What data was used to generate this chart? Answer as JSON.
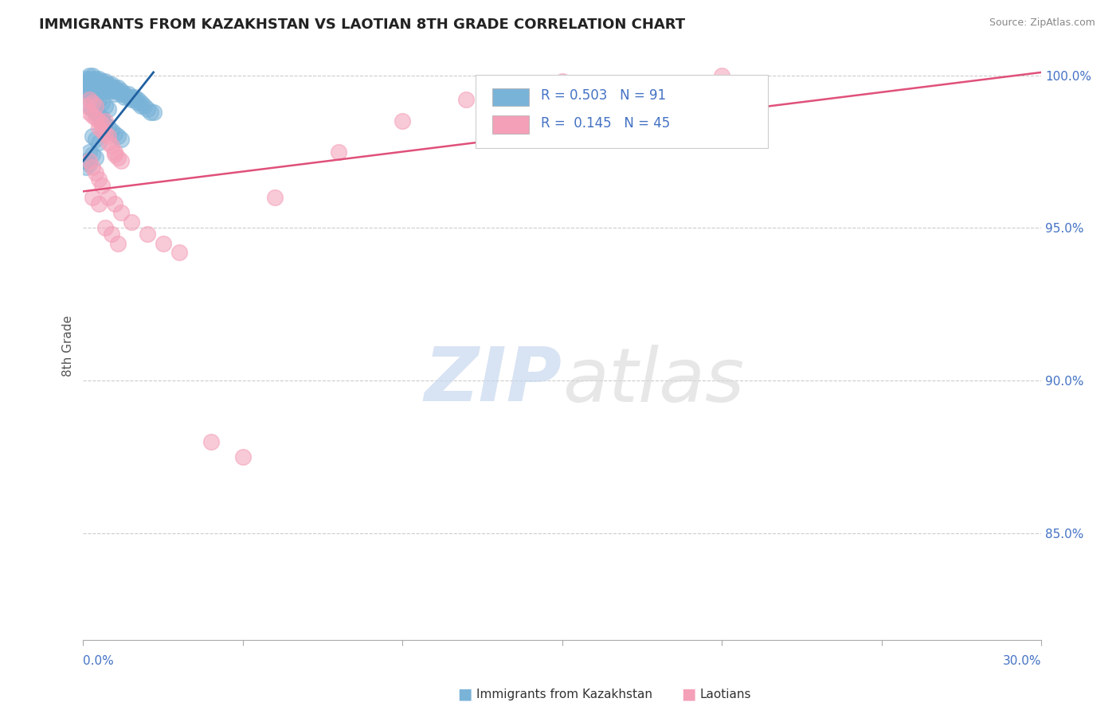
{
  "title": "IMMIGRANTS FROM KAZAKHSTAN VS LAOTIAN 8TH GRADE CORRELATION CHART",
  "source": "Source: ZipAtlas.com",
  "ylabel": "8th Grade",
  "xlim": [
    0.0,
    0.3
  ],
  "ylim": [
    0.815,
    1.008
  ],
  "yticks": [
    0.85,
    0.9,
    0.95,
    1.0
  ],
  "ytick_labels": [
    "85.0%",
    "90.0%",
    "95.0%",
    "100.0%"
  ],
  "blue_color": "#7ab3d8",
  "pink_color": "#f4a0b8",
  "blue_line_color": "#2060a0",
  "pink_line_color": "#e0507a",
  "blue_line_x": [
    0.0,
    0.022
  ],
  "blue_line_y": [
    0.972,
    1.001
  ],
  "pink_line_x": [
    0.0,
    0.3
  ],
  "pink_line_y": [
    0.962,
    1.001
  ],
  "blue_scatter_x": [
    0.001,
    0.001,
    0.001,
    0.001,
    0.001,
    0.002,
    0.002,
    0.002,
    0.002,
    0.002,
    0.002,
    0.002,
    0.003,
    0.003,
    0.003,
    0.003,
    0.003,
    0.003,
    0.004,
    0.004,
    0.004,
    0.004,
    0.004,
    0.005,
    0.005,
    0.005,
    0.005,
    0.006,
    0.006,
    0.006,
    0.006,
    0.007,
    0.007,
    0.007,
    0.007,
    0.008,
    0.008,
    0.008,
    0.009,
    0.009,
    0.009,
    0.01,
    0.01,
    0.01,
    0.011,
    0.011,
    0.012,
    0.012,
    0.013,
    0.013,
    0.014,
    0.014,
    0.015,
    0.015,
    0.016,
    0.016,
    0.017,
    0.017,
    0.018,
    0.018,
    0.019,
    0.02,
    0.021,
    0.022,
    0.003,
    0.004,
    0.005,
    0.002,
    0.003,
    0.004,
    0.001,
    0.002,
    0.006,
    0.007,
    0.008,
    0.009,
    0.01,
    0.011,
    0.012,
    0.002,
    0.003,
    0.004,
    0.005,
    0.006,
    0.005,
    0.006,
    0.007,
    0.008,
    0.003,
    0.004,
    0.001
  ],
  "blue_scatter_y": [
    0.999,
    0.998,
    0.997,
    0.996,
    0.995,
    1.0,
    0.999,
    0.998,
    0.997,
    0.996,
    0.995,
    0.994,
    1.0,
    0.999,
    0.998,
    0.997,
    0.996,
    0.995,
    0.999,
    0.998,
    0.997,
    0.996,
    0.995,
    0.999,
    0.998,
    0.997,
    0.996,
    0.998,
    0.997,
    0.996,
    0.995,
    0.998,
    0.997,
    0.996,
    0.995,
    0.997,
    0.996,
    0.995,
    0.997,
    0.996,
    0.995,
    0.996,
    0.995,
    0.994,
    0.996,
    0.995,
    0.995,
    0.994,
    0.994,
    0.993,
    0.994,
    0.993,
    0.993,
    0.992,
    0.993,
    0.992,
    0.992,
    0.991,
    0.991,
    0.99,
    0.99,
    0.989,
    0.988,
    0.988,
    0.98,
    0.979,
    0.978,
    0.975,
    0.974,
    0.973,
    0.972,
    0.971,
    0.985,
    0.984,
    0.983,
    0.982,
    0.981,
    0.98,
    0.979,
    0.99,
    0.989,
    0.988,
    0.987,
    0.986,
    0.992,
    0.991,
    0.99,
    0.989,
    0.993,
    0.992,
    0.97
  ],
  "pink_scatter_x": [
    0.001,
    0.002,
    0.002,
    0.003,
    0.003,
    0.004,
    0.004,
    0.005,
    0.005,
    0.006,
    0.006,
    0.007,
    0.007,
    0.008,
    0.008,
    0.009,
    0.01,
    0.01,
    0.011,
    0.012,
    0.002,
    0.003,
    0.004,
    0.005,
    0.006,
    0.008,
    0.01,
    0.012,
    0.015,
    0.02,
    0.025,
    0.03,
    0.04,
    0.05,
    0.06,
    0.08,
    0.1,
    0.12,
    0.15,
    0.2,
    0.003,
    0.005,
    0.007,
    0.009,
    0.011
  ],
  "pink_scatter_y": [
    0.99,
    0.992,
    0.988,
    0.991,
    0.987,
    0.99,
    0.986,
    0.985,
    0.983,
    0.984,
    0.982,
    0.985,
    0.981,
    0.98,
    0.978,
    0.977,
    0.975,
    0.974,
    0.973,
    0.972,
    0.972,
    0.97,
    0.968,
    0.966,
    0.964,
    0.96,
    0.958,
    0.955,
    0.952,
    0.948,
    0.945,
    0.942,
    0.88,
    0.875,
    0.96,
    0.975,
    0.985,
    0.992,
    0.998,
    1.0,
    0.96,
    0.958,
    0.95,
    0.948,
    0.945
  ]
}
